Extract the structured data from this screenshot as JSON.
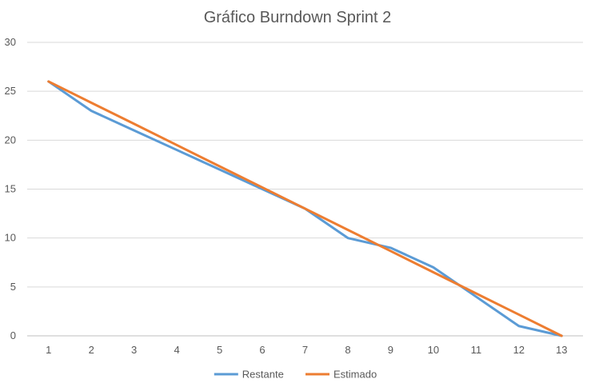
{
  "chart_data": {
    "type": "line",
    "title": "Gráfico Burndown Sprint 2",
    "xlabel": "",
    "ylabel": "",
    "x": [
      1,
      2,
      3,
      4,
      5,
      6,
      7,
      8,
      9,
      10,
      11,
      12,
      13
    ],
    "ylim": [
      0,
      30
    ],
    "yticks": [
      0,
      5,
      10,
      15,
      20,
      25,
      30
    ],
    "grid": true,
    "legend_position": "bottom",
    "series": [
      {
        "name": "Restante",
        "color": "#5B9BD5",
        "values": [
          26,
          23,
          21,
          19,
          17,
          15,
          13,
          10,
          9,
          7,
          4,
          1,
          0
        ]
      },
      {
        "name": "Estimado",
        "color": "#ED7D31",
        "values": [
          26,
          23.83,
          21.67,
          19.5,
          17.33,
          15.17,
          13,
          10.83,
          8.67,
          6.5,
          4.33,
          2.17,
          0
        ]
      }
    ]
  }
}
